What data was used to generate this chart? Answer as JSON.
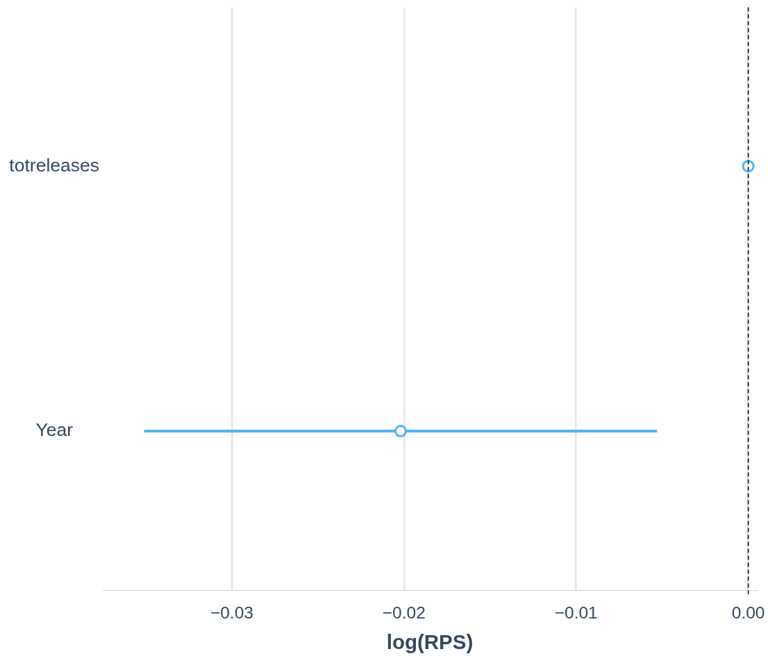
{
  "chart_data": {
    "type": "scatter",
    "orientation": "horizontal",
    "categories": [
      "totreleases",
      "Year"
    ],
    "values": [
      0.0,
      -0.0202
    ],
    "errors": [
      null,
      [
        -0.0351,
        -0.0053
      ]
    ],
    "color": "#4cb5f5",
    "marker": "circle",
    "xlabel": "log(RPS)",
    "xlim": [
      -0.0375,
      0.0005
    ],
    "xticks": [
      {
        "value": -0.03,
        "label": "−0.03"
      },
      {
        "value": -0.02,
        "label": "−0.02"
      },
      {
        "value": -0.01,
        "label": "−0.01"
      },
      {
        "value": 0,
        "label": "0.00"
      }
    ],
    "grid": "x",
    "ref_lines": [
      {
        "axis": "x",
        "value": 0,
        "color": "#000000",
        "line_style": "dashed"
      }
    ]
  }
}
